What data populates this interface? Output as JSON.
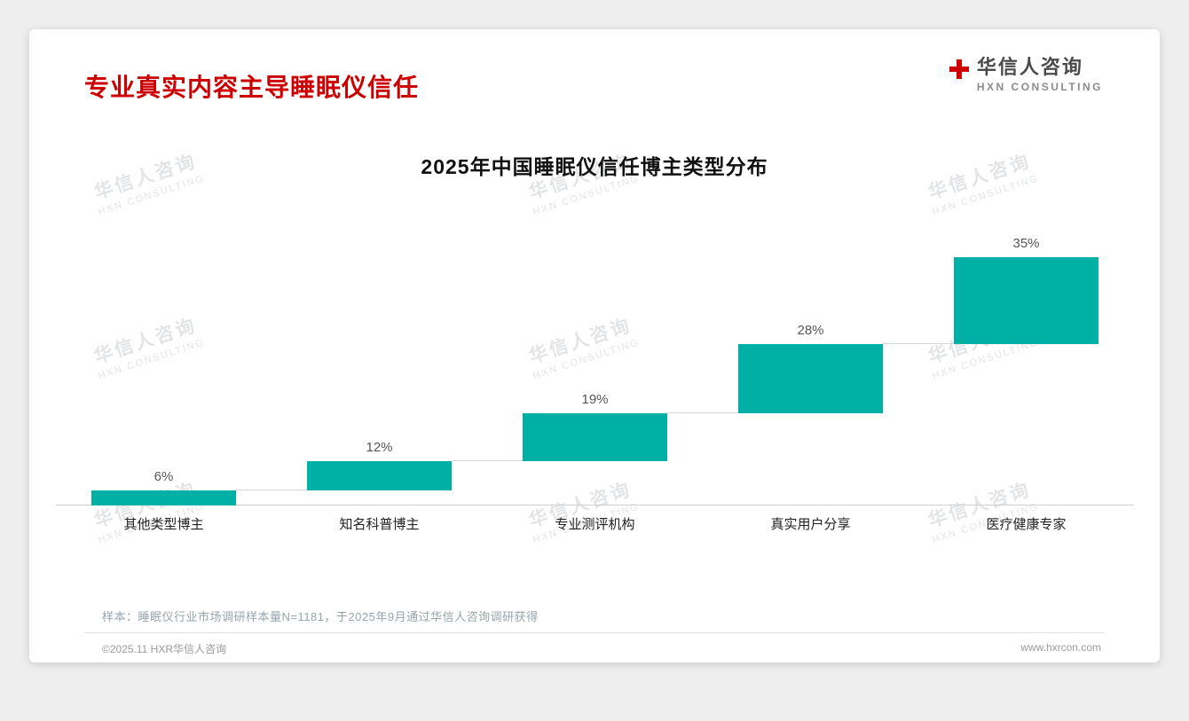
{
  "header": {
    "page_title": "专业真实内容主导睡眠仪信任",
    "logo": {
      "cn": "华信人咨询",
      "en": "HXN CONSULTING",
      "icon": "red-plus-icon"
    }
  },
  "watermark": {
    "line1": "华信人咨询",
    "line2": "HXN CONSULTING"
  },
  "chart_data": {
    "type": "bar",
    "variant": "waterfall-steps",
    "title": "2025年中国睡眠仪信任博主类型分布",
    "categories": [
      "其他类型博主",
      "知名科普博主",
      "专业测评机构",
      "真实用户分享",
      "医疗健康专家"
    ],
    "values": [
      6,
      12,
      19,
      28,
      35
    ],
    "value_labels": [
      "6%",
      "12%",
      "19%",
      "28%",
      "35%"
    ],
    "cumulative_start": [
      0,
      6,
      18,
      37,
      65
    ],
    "unit": "%",
    "ylim": [
      0,
      100
    ],
    "grid": false,
    "legend": false,
    "bar_color": "#00b0a5",
    "connector_color": "#d5d5d5",
    "axis_line_color": "#cfcfcf"
  },
  "footnote": "样本：睡眠仪行业市场调研样本量N=1181，于2025年9月通过华信人咨询调研获得",
  "footer": {
    "copyright": "©2025.11 HXR华信人咨询",
    "website": "www.hxrcon.com"
  },
  "colors": {
    "accent_red": "#cc0000",
    "bar_teal": "#00b0a5"
  }
}
